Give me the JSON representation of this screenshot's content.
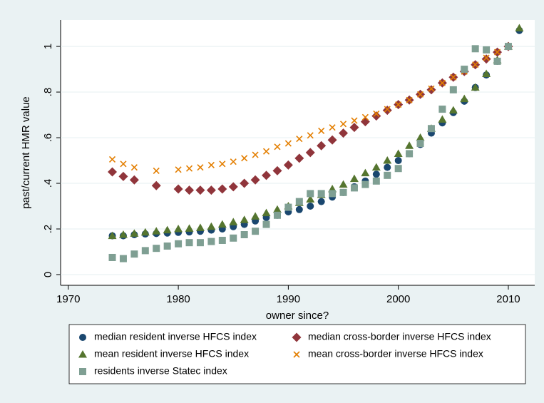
{
  "chart_data": {
    "type": "scatter",
    "xlabel": "past/current HMR value",
    "x_axis_label": "owner since?",
    "xlim": [
      1969.3,
      2012.4
    ],
    "ylim": [
      -0.047,
      1.116
    ],
    "xticks": [
      1970,
      1980,
      1990,
      2000,
      2010
    ],
    "yticks": [
      0,
      {
        "value": 0.2,
        "label": ".2"
      },
      {
        "value": 0.4,
        "label": ".4"
      },
      {
        "value": 0.6,
        "label": ".6"
      },
      {
        "value": 0.8,
        "label": ".8"
      },
      1
    ],
    "grid": true,
    "series": [
      {
        "name": "median resident inverse HFCS index",
        "color": "#1a476f",
        "marker": "circle",
        "x": [
          1974,
          1975,
          1976,
          1977,
          1978,
          1979,
          1980,
          1981,
          1982,
          1983,
          1984,
          1985,
          1986,
          1987,
          1988,
          1989,
          1990,
          1991,
          1992,
          1993,
          1994,
          1995,
          1996,
          1997,
          1998,
          1999,
          2000,
          2001,
          2002,
          2003,
          2004,
          2005,
          2006,
          2007,
          2008,
          2009,
          2010,
          2011
        ],
        "values": [
          0.17,
          0.17,
          0.175,
          0.178,
          0.18,
          0.182,
          0.185,
          0.187,
          0.19,
          0.195,
          0.2,
          0.21,
          0.22,
          0.235,
          0.25,
          0.26,
          0.275,
          0.285,
          0.3,
          0.32,
          0.34,
          0.36,
          0.385,
          0.41,
          0.44,
          0.47,
          0.5,
          0.53,
          0.57,
          0.62,
          0.665,
          0.71,
          0.76,
          0.82,
          0.875,
          0.935,
          1.0,
          1.07
        ]
      },
      {
        "name": "median cross-border inverse HFCS index",
        "color": "#90353b",
        "marker": "diamond",
        "x": [
          1974,
          1975,
          1976,
          1978,
          1980,
          1981,
          1982,
          1983,
          1984,
          1985,
          1986,
          1987,
          1988,
          1989,
          1990,
          1991,
          1992,
          1993,
          1994,
          1995,
          1996,
          1997,
          1998,
          1999,
          2000,
          2001,
          2002,
          2003,
          2004,
          2005,
          2006,
          2007,
          2008,
          2009,
          2010
        ],
        "values": [
          0.45,
          0.43,
          0.415,
          0.39,
          0.375,
          0.37,
          0.37,
          0.37,
          0.375,
          0.385,
          0.4,
          0.415,
          0.435,
          0.455,
          0.48,
          0.51,
          0.535,
          0.565,
          0.59,
          0.62,
          0.645,
          0.67,
          0.695,
          0.72,
          0.745,
          0.765,
          0.79,
          0.81,
          0.84,
          0.865,
          0.89,
          0.92,
          0.945,
          0.975,
          1.0
        ]
      },
      {
        "name": "mean resident inverse HFCS index",
        "color": "#55752f",
        "marker": "triangle",
        "x": [
          1974,
          1975,
          1976,
          1977,
          1978,
          1979,
          1980,
          1981,
          1982,
          1983,
          1984,
          1985,
          1986,
          1987,
          1988,
          1989,
          1990,
          1991,
          1992,
          1993,
          1994,
          1995,
          1996,
          1997,
          1998,
          1999,
          2000,
          2001,
          2002,
          2003,
          2004,
          2005,
          2006,
          2007,
          2008,
          2009,
          2010,
          2011
        ],
        "values": [
          0.17,
          0.175,
          0.18,
          0.185,
          0.19,
          0.195,
          0.2,
          0.202,
          0.205,
          0.21,
          0.22,
          0.23,
          0.24,
          0.255,
          0.27,
          0.285,
          0.3,
          0.315,
          0.33,
          0.35,
          0.375,
          0.395,
          0.42,
          0.445,
          0.47,
          0.5,
          0.53,
          0.565,
          0.6,
          0.64,
          0.68,
          0.72,
          0.77,
          0.82,
          0.88,
          0.94,
          1.0,
          1.08
        ]
      },
      {
        "name": "mean cross-border inverse HFCS index",
        "color": "#e37e00",
        "marker": "x",
        "x": [
          1974,
          1975,
          1976,
          1978,
          1980,
          1981,
          1982,
          1983,
          1984,
          1985,
          1986,
          1987,
          1988,
          1989,
          1990,
          1991,
          1992,
          1993,
          1994,
          1995,
          1996,
          1997,
          1998,
          1999,
          2000,
          2001,
          2002,
          2003,
          2004,
          2005,
          2006,
          2007,
          2008,
          2009,
          2010
        ],
        "values": [
          0.505,
          0.485,
          0.47,
          0.455,
          0.46,
          0.465,
          0.47,
          0.48,
          0.485,
          0.495,
          0.51,
          0.525,
          0.54,
          0.56,
          0.575,
          0.595,
          0.61,
          0.63,
          0.645,
          0.66,
          0.675,
          0.69,
          0.705,
          0.725,
          0.745,
          0.765,
          0.79,
          0.815,
          0.84,
          0.865,
          0.89,
          0.92,
          0.95,
          0.975,
          1.0
        ]
      },
      {
        "name": "residents inverse Statec index",
        "color": "#7f9f93",
        "marker": "square",
        "x": [
          1974,
          1975,
          1976,
          1977,
          1978,
          1979,
          1980,
          1981,
          1982,
          1983,
          1984,
          1985,
          1986,
          1987,
          1988,
          1989,
          1990,
          1991,
          1992,
          1993,
          1994,
          1995,
          1996,
          1997,
          1998,
          1999,
          2000,
          2001,
          2002,
          2003,
          2004,
          2005,
          2006,
          2007,
          2008,
          2009,
          2010
        ],
        "values": [
          0.075,
          0.07,
          0.09,
          0.105,
          0.115,
          0.125,
          0.135,
          0.14,
          0.14,
          0.145,
          0.15,
          0.16,
          0.175,
          0.19,
          0.22,
          0.26,
          0.295,
          0.32,
          0.355,
          0.355,
          0.355,
          0.36,
          0.38,
          0.395,
          0.41,
          0.435,
          0.465,
          0.53,
          0.575,
          0.64,
          0.725,
          0.81,
          0.9,
          0.99,
          0.985,
          0.935,
          1.0
        ]
      }
    ]
  }
}
